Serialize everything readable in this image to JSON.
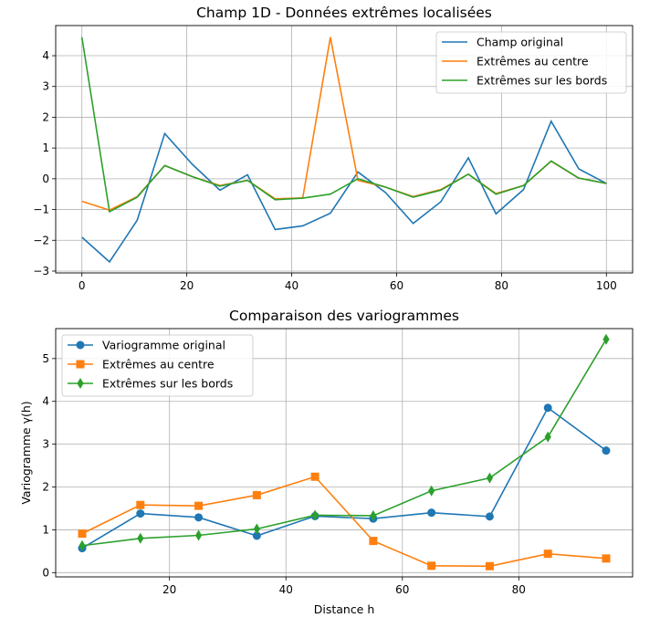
{
  "chart_data": [
    {
      "type": "line",
      "title": "Champ 1D - Données extrêmes localisées",
      "xlabel": "",
      "ylabel": "",
      "xlim": [
        -5,
        105
      ],
      "ylim": [
        -3.06,
        4.98
      ],
      "xticks": [
        0,
        20,
        40,
        60,
        80,
        100
      ],
      "yticks": [
        -3,
        -2,
        -1,
        0,
        1,
        2,
        3,
        4
      ],
      "grid": true,
      "legend": "top-right",
      "x": [
        0,
        5.26,
        10.53,
        15.79,
        21.05,
        26.32,
        31.58,
        36.84,
        42.11,
        47.37,
        52.63,
        57.89,
        63.16,
        68.42,
        73.68,
        78.95,
        84.21,
        89.47,
        94.74,
        100
      ],
      "series": [
        {
          "name": "Champ original",
          "color": "#1f77b4",
          "marker": "none",
          "values": [
            -1.9,
            -2.7,
            -1.35,
            1.47,
            0.47,
            -0.37,
            0.13,
            -1.65,
            -1.53,
            -1.12,
            0.22,
            -0.45,
            -1.45,
            -0.75,
            0.68,
            -1.14,
            -0.35,
            1.87,
            0.32,
            -0.15
          ]
        },
        {
          "name": "Extrêmes au centre",
          "color": "#ff7f0e",
          "marker": "none",
          "values": [
            -0.73,
            -1.02,
            -0.58,
            0.43,
            0.07,
            -0.22,
            -0.05,
            -0.65,
            -0.62,
            4.6,
            -0.05,
            -0.27,
            -0.58,
            -0.35,
            0.15,
            -0.48,
            -0.22,
            0.57,
            0.02,
            -0.15
          ]
        },
        {
          "name": "Extrêmes sur les bords",
          "color": "#2ca02c",
          "marker": "none",
          "values": [
            4.6,
            -1.07,
            -0.6,
            0.43,
            0.07,
            -0.24,
            -0.05,
            -0.68,
            -0.63,
            -0.5,
            0.0,
            -0.27,
            -0.6,
            -0.37,
            0.15,
            -0.5,
            -0.22,
            0.58,
            0.02,
            -0.15
          ]
        }
      ]
    },
    {
      "type": "line",
      "title": "Comparaison des variogrammes",
      "xlabel": "Distance h",
      "ylabel": "Variogramme γ(h)",
      "xlim": [
        0.45,
        99.55
      ],
      "ylim": [
        -0.1,
        5.7
      ],
      "xticks": [
        20,
        40,
        60,
        80
      ],
      "yticks": [
        0,
        1,
        2,
        3,
        4,
        5
      ],
      "grid": true,
      "legend": "top-left",
      "x": [
        5,
        15,
        25,
        35,
        45,
        55,
        65,
        75,
        85,
        95
      ],
      "series": [
        {
          "name": "Variogramme original",
          "color": "#1f77b4",
          "marker": "circle",
          "values": [
            0.57,
            1.38,
            1.29,
            0.86,
            1.32,
            1.26,
            1.4,
            1.31,
            3.85,
            2.85
          ]
        },
        {
          "name": "Extrêmes au centre",
          "color": "#ff7f0e",
          "marker": "square",
          "values": [
            0.91,
            1.58,
            1.56,
            1.81,
            2.24,
            0.74,
            0.16,
            0.15,
            0.44,
            0.33
          ]
        },
        {
          "name": "Extrêmes sur les bords",
          "color": "#2ca02c",
          "marker": "diamond",
          "values": [
            0.63,
            0.8,
            0.87,
            1.02,
            1.34,
            1.33,
            1.91,
            2.21,
            3.17,
            5.45
          ]
        }
      ]
    }
  ]
}
